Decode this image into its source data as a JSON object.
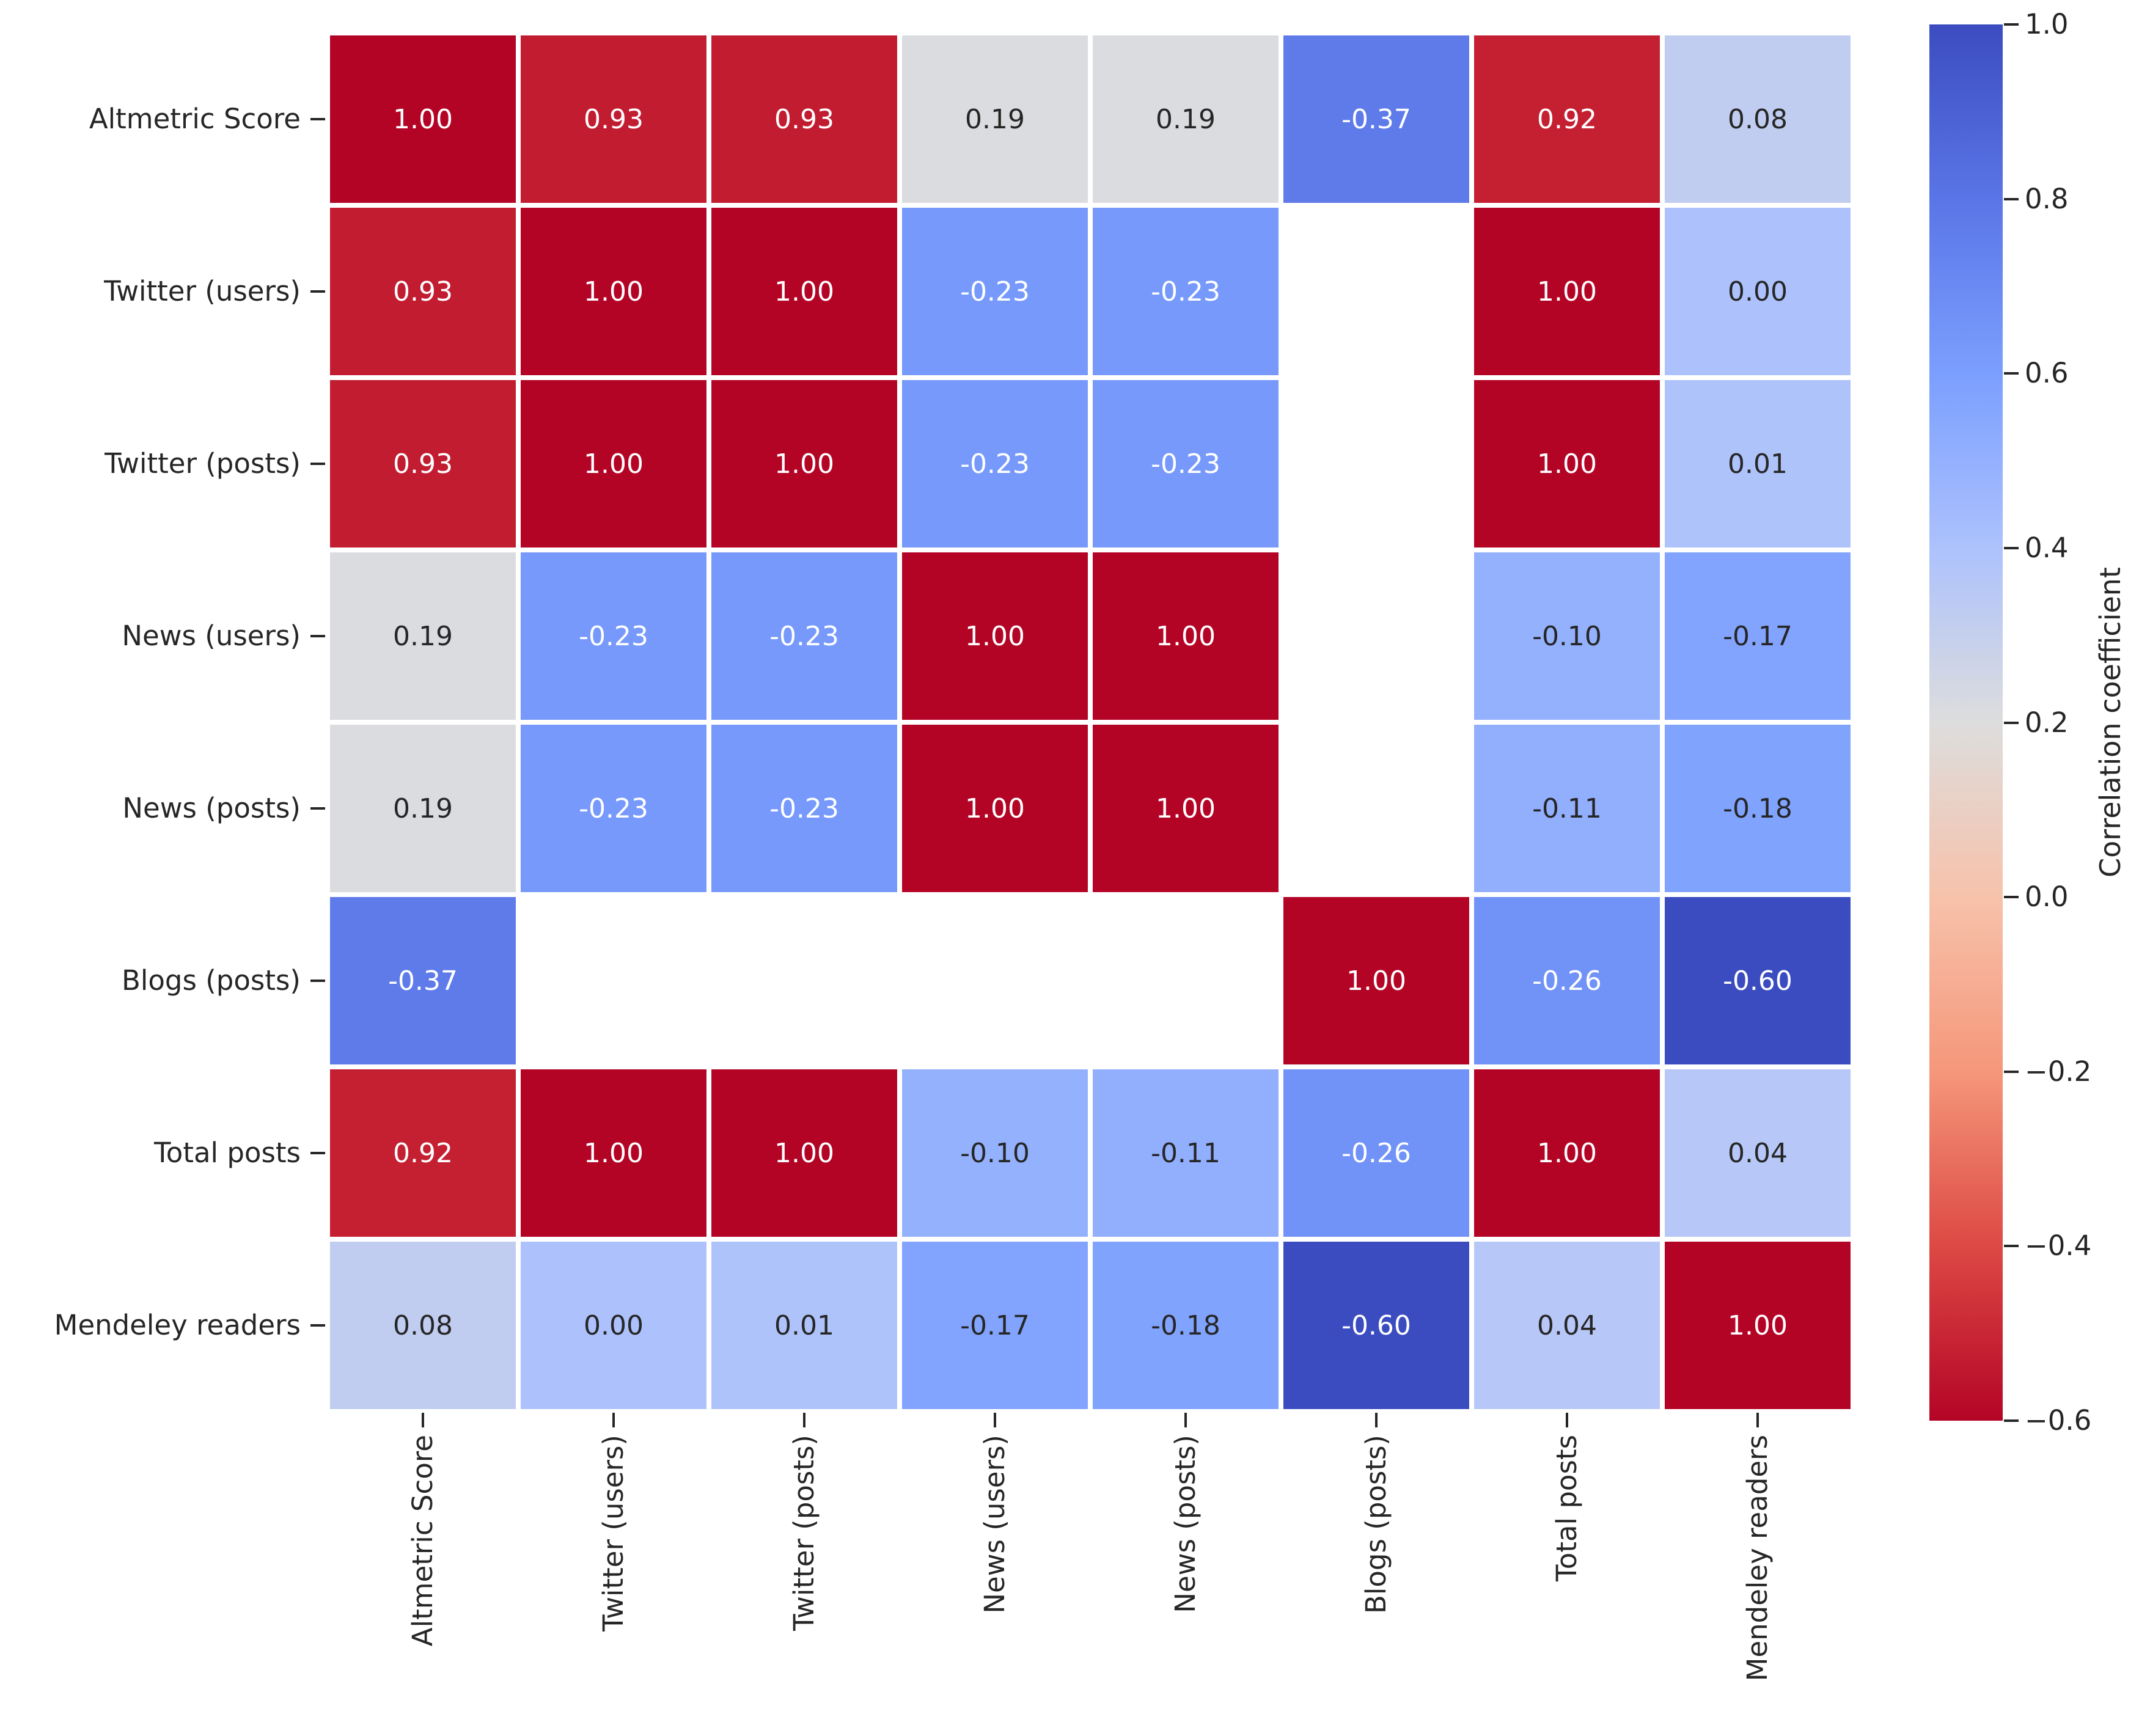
{
  "figure": {
    "background": "#ffffff",
    "text_color": "#262626"
  },
  "chart_data": {
    "type": "heatmap",
    "title": "",
    "categories": [
      "Altmetric Score",
      "Twitter (users)",
      "Twitter (posts)",
      "News (users)",
      "News (posts)",
      "Blogs (posts)",
      "Total posts",
      "Mendeley readers"
    ],
    "matrix": [
      [
        1.0,
        0.93,
        0.93,
        0.19,
        0.19,
        -0.37,
        0.92,
        0.08
      ],
      [
        0.93,
        1.0,
        1.0,
        -0.23,
        -0.23,
        null,
        1.0,
        0.0
      ],
      [
        0.93,
        1.0,
        1.0,
        -0.23,
        -0.23,
        null,
        1.0,
        0.01
      ],
      [
        0.19,
        -0.23,
        -0.23,
        1.0,
        1.0,
        null,
        -0.1,
        -0.17
      ],
      [
        0.19,
        -0.23,
        -0.23,
        1.0,
        1.0,
        null,
        -0.11,
        -0.18
      ],
      [
        -0.37,
        null,
        null,
        null,
        null,
        1.0,
        -0.26,
        -0.6
      ],
      [
        0.92,
        1.0,
        1.0,
        -0.1,
        -0.11,
        -0.26,
        1.0,
        0.04
      ],
      [
        0.08,
        0.0,
        0.01,
        -0.17,
        -0.18,
        -0.6,
        0.04,
        1.0
      ]
    ],
    "annotation_decimals": 2,
    "grid_line_color": "#ffffff",
    "nan_cell_color": "#ffffff",
    "colorbar": {
      "label": "Correlation coefficient",
      "vmin": -0.6,
      "vmax": 1.0,
      "tick_values": [
        1.0,
        0.8,
        0.6,
        0.4,
        0.2,
        0.0,
        -0.2,
        -0.4,
        -0.6
      ],
      "tick_labels": [
        "1.0",
        "0.8",
        "0.6",
        "0.4",
        "0.2",
        "0.0",
        "−0.2",
        "−0.4",
        "−0.6"
      ],
      "position": "right"
    },
    "colormap": {
      "name": "coolwarm",
      "anchors": [
        "#3b4cc0",
        "#5a75e7",
        "#7b9ffe",
        "#adc2fd",
        "#dddddd",
        "#f7c2ab",
        "#f5977a",
        "#dd4944",
        "#b40426"
      ]
    },
    "annotation_colors": {
      "light": "#ffffff",
      "dark": "#262626"
    },
    "legend_position": "right",
    "grid": false
  }
}
